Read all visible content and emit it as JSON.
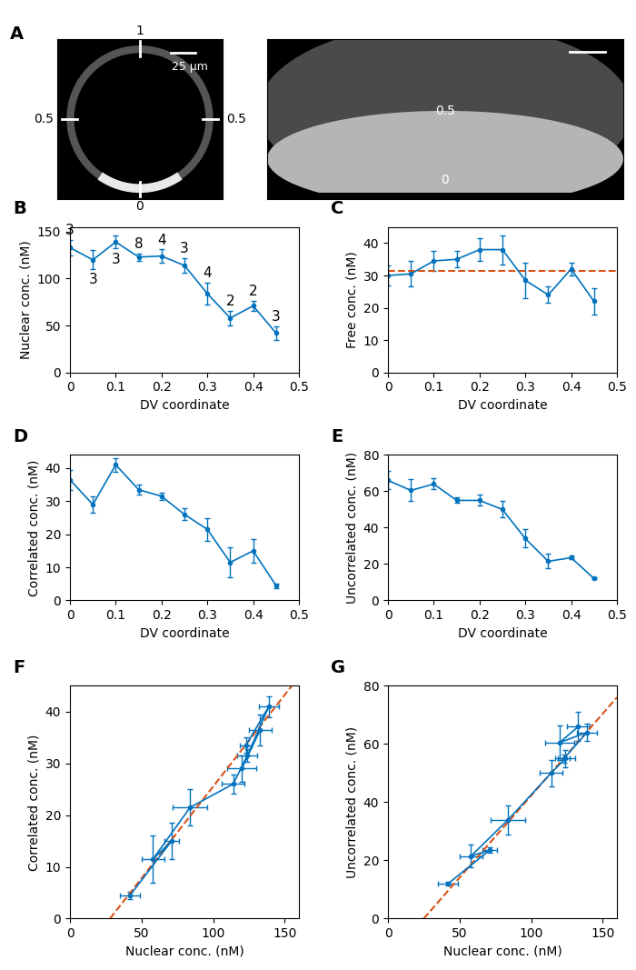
{
  "image_panel": {
    "panel": "A",
    "left_image": {
      "labels": [
        "1",
        "0.5",
        "0.5",
        "0"
      ],
      "scale_bar": "25 μm"
    },
    "right_image": {
      "labels": [
        "0.5",
        "0"
      ]
    }
  },
  "chart_data": [
    {
      "panel": "B",
      "type": "line",
      "xlabel": "DV coordinate",
      "ylabel": "Nuclear conc. (nM)",
      "x": [
        0,
        0.05,
        0.1,
        0.15,
        0.2,
        0.25,
        0.3,
        0.35,
        0.4,
        0.45
      ],
      "values": [
        133,
        120,
        139,
        123,
        124,
        114,
        84,
        58,
        71,
        42
      ],
      "errors": [
        8,
        10,
        7,
        4,
        7,
        8,
        12,
        8,
        5,
        7
      ],
      "point_labels": [
        3,
        3,
        3,
        8,
        4,
        3,
        4,
        2,
        2,
        3
      ],
      "color": "#0072BD",
      "marker": "o",
      "line_style": "solid",
      "xlim": [
        0,
        0.5
      ],
      "xticks": [
        0,
        0.1,
        0.2,
        0.3,
        0.4,
        0.5
      ],
      "ylim": [
        0,
        155
      ],
      "yticks": [
        0,
        50,
        100,
        150
      ]
    },
    {
      "panel": "C",
      "type": "line",
      "xlabel": "DV coordinate",
      "ylabel": "Free conc. (nM)",
      "x": [
        0,
        0.05,
        0.1,
        0.15,
        0.2,
        0.25,
        0.3,
        0.35,
        0.4,
        0.45
      ],
      "values": [
        30,
        30.5,
        34.5,
        35,
        38,
        38,
        28.5,
        24,
        32,
        22
      ],
      "errors": [
        3,
        4,
        3,
        2.5,
        3.5,
        4.5,
        5.5,
        2.5,
        2,
        4
      ],
      "color": "#0072BD",
      "marker": "o",
      "line_style": "solid",
      "reference_line": {
        "x": [
          0,
          0.5
        ],
        "y": [
          31.5,
          31.5
        ],
        "color": "#D95319",
        "line_style": "dashed"
      },
      "xlim": [
        0,
        0.5
      ],
      "xticks": [
        0,
        0.1,
        0.2,
        0.3,
        0.4,
        0.5
      ],
      "ylim": [
        0,
        45
      ],
      "yticks": [
        0,
        10,
        20,
        30,
        40
      ]
    },
    {
      "panel": "D",
      "type": "line",
      "xlabel": "DV coordinate",
      "ylabel": "Correlated conc. (nM)",
      "x": [
        0,
        0.05,
        0.1,
        0.15,
        0.2,
        0.25,
        0.3,
        0.35,
        0.4,
        0.45
      ],
      "values": [
        36.5,
        29,
        41,
        33.5,
        31.5,
        26,
        21.5,
        11.5,
        15,
        4.5
      ],
      "errors": [
        3,
        2.5,
        2,
        1.5,
        1.2,
        1.8,
        3.5,
        4.5,
        3.5,
        0.7
      ],
      "color": "#0072BD",
      "marker": "o",
      "line_style": "solid",
      "xlim": [
        0,
        0.5
      ],
      "xticks": [
        0,
        0.1,
        0.2,
        0.3,
        0.4,
        0.5
      ],
      "ylim": [
        0,
        44
      ],
      "yticks": [
        0,
        10,
        20,
        30,
        40
      ]
    },
    {
      "panel": "E",
      "type": "line",
      "xlabel": "DV coordinate",
      "ylabel": "Uncorrelated conc. (nM)",
      "x": [
        0,
        0.05,
        0.1,
        0.15,
        0.2,
        0.25,
        0.3,
        0.35,
        0.4,
        0.45
      ],
      "values": [
        66,
        60.5,
        64,
        55,
        55,
        50,
        34,
        21.5,
        23.5,
        12
      ],
      "errors": [
        5,
        6,
        3,
        1.5,
        3,
        4.5,
        5,
        4,
        1,
        0.5
      ],
      "color": "#0072BD",
      "marker": "o",
      "line_style": "solid",
      "xlim": [
        0,
        0.5
      ],
      "xticks": [
        0,
        0.1,
        0.2,
        0.3,
        0.4,
        0.5
      ],
      "ylim": [
        0,
        80
      ],
      "yticks": [
        0,
        20,
        40,
        60,
        80
      ]
    },
    {
      "panel": "F",
      "type": "line",
      "xlabel": "Nuclear conc. (nM)",
      "ylabel": "Correlated conc. (nM)",
      "x": [
        133,
        120,
        139,
        123,
        124,
        114,
        84,
        58,
        71,
        42
      ],
      "x_errors": [
        8,
        10,
        7,
        4,
        7,
        8,
        12,
        8,
        5,
        7
      ],
      "values": [
        36.5,
        29,
        41,
        33.5,
        31.5,
        26,
        21.5,
        11.5,
        15,
        4.5
      ],
      "errors": [
        3,
        2.5,
        2,
        1.5,
        1.2,
        1.8,
        3.5,
        4.5,
        3.5,
        0.7
      ],
      "color": "#0072BD",
      "marker": "o",
      "line_style": "solid",
      "reference_line": {
        "x": [
          28,
          155
        ],
        "y": [
          0,
          45
        ],
        "color": "#D95319",
        "line_style": "dashed"
      },
      "xlim": [
        0,
        160
      ],
      "xticks": [
        0,
        50,
        100,
        150
      ],
      "ylim": [
        0,
        45
      ],
      "yticks": [
        0,
        10,
        20,
        30,
        40
      ]
    },
    {
      "panel": "G",
      "type": "line",
      "xlabel": "Nuclear conc. (nM)",
      "ylabel": "Uncorrelated conc. (nM)",
      "x": [
        133,
        120,
        139,
        123,
        124,
        114,
        84,
        58,
        71,
        42
      ],
      "x_errors": [
        8,
        10,
        7,
        4,
        7,
        8,
        12,
        8,
        5,
        7
      ],
      "values": [
        66,
        60.5,
        64,
        55,
        55,
        50,
        34,
        21.5,
        23.5,
        12
      ],
      "errors": [
        5,
        6,
        3,
        1.5,
        3,
        4.5,
        5,
        4,
        1,
        0.5
      ],
      "color": "#0072BD",
      "marker": "o",
      "line_style": "solid",
      "reference_line": {
        "x": [
          25,
          160
        ],
        "y": [
          0,
          76
        ],
        "color": "#D95319",
        "line_style": "dashed"
      },
      "xlim": [
        0,
        160
      ],
      "xticks": [
        0,
        50,
        100,
        150
      ],
      "ylim": [
        0,
        80
      ],
      "yticks": [
        0,
        20,
        40,
        60,
        80
      ]
    }
  ]
}
